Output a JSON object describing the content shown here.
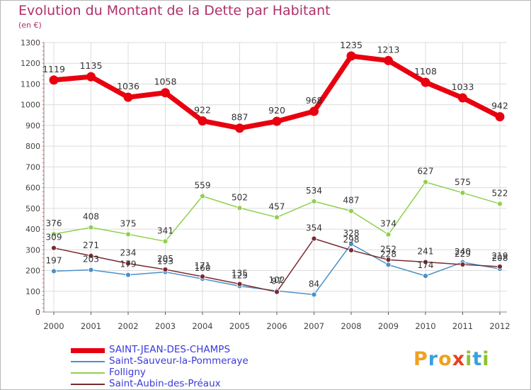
{
  "title": "Evolution du Montant de la Dette par Habitant",
  "subtitle": "(en €)",
  "logo": {
    "letters": [
      "P",
      "r",
      "o",
      "x",
      "i",
      "t",
      "i"
    ],
    "colors": [
      "#f0a020",
      "#3aa0e0",
      "#f0a020",
      "#e84020",
      "#90c030",
      "#3aa0e0",
      "#90c030"
    ]
  },
  "chart_data": {
    "type": "line",
    "x": [
      "2000",
      "2001",
      "2002",
      "2003",
      "2004",
      "2005",
      "2006",
      "2007",
      "2008",
      "2009",
      "2010",
      "2011",
      "2012"
    ],
    "ylim": [
      0,
      1300
    ],
    "yticks": [
      "0",
      "100",
      "200",
      "300",
      "400",
      "500",
      "600",
      "700",
      "800",
      "900",
      "1000",
      "1100",
      "1200",
      "1300"
    ],
    "grid": true,
    "legend_position": "bottom-left",
    "series": [
      {
        "name": "SAINT-JEAN-DES-CHAMPS",
        "color": "#e8000f",
        "values": [
          1119,
          1135,
          1036,
          1058,
          922,
          887,
          920,
          968,
          1235,
          1213,
          1108,
          1033,
          942
        ],
        "labels": [
          "1119",
          "1135",
          "1036",
          "1058",
          "922",
          "887",
          "920",
          "968",
          "1235",
          "1213",
          "1108",
          "1033",
          "942"
        ]
      },
      {
        "name": "Saint-Sauveur-la-Pommeraye",
        "color": "#4a90c8",
        "values": [
          197,
          203,
          179,
          193,
          160,
          125,
          102,
          84,
          328,
          228,
          174,
          240,
          208
        ],
        "labels": [
          "197",
          "203",
          "179",
          "193",
          "160",
          "125",
          "102",
          "84",
          "328",
          "228",
          "174",
          "240",
          "208"
        ]
      },
      {
        "name": "Folligny",
        "color": "#90d050",
        "values": [
          376,
          408,
          375,
          341,
          559,
          502,
          457,
          534,
          487,
          374,
          627,
          575,
          522
        ],
        "labels": [
          "376",
          "408",
          "375",
          "341",
          "559",
          "502",
          "457",
          "534",
          "487",
          "374",
          "627",
          "575",
          "522"
        ]
      },
      {
        "name": "Saint-Aubin-des-Préaux",
        "color": "#7a2a30",
        "values": [
          309,
          271,
          234,
          205,
          171,
          135,
          97,
          354,
          298,
          252,
          241,
          229,
          219
        ],
        "labels": [
          "309",
          "271",
          "234",
          "205",
          "171",
          "135",
          "97",
          "354",
          "298",
          "252",
          "241",
          "229",
          "219"
        ]
      }
    ]
  }
}
